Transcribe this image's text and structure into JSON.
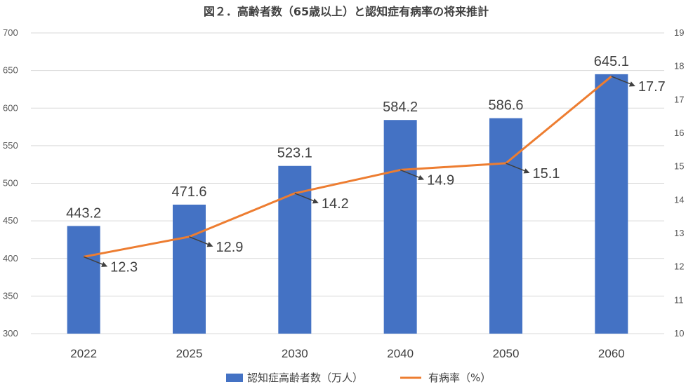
{
  "chart_data": {
    "type": "bar",
    "title": "図２．高齢者数（65歳以上）と認知症有病率の将来推計",
    "categories": [
      "2022",
      "2025",
      "2030",
      "2040",
      "2050",
      "2060"
    ],
    "series": [
      {
        "name": "認知症高齢者数（万人）",
        "type": "bar",
        "axis": "left",
        "values": [
          443.2,
          471.6,
          523.1,
          584.2,
          586.6,
          645.1
        ],
        "labels": [
          "443.2",
          "471.6",
          "523.1",
          "584.2",
          "586.6",
          "645.1"
        ],
        "color": "#4472C4"
      },
      {
        "name": "有病率（%）",
        "type": "line",
        "axis": "right",
        "values": [
          12.3,
          12.9,
          14.2,
          14.9,
          15.1,
          17.7
        ],
        "labels": [
          "12.3",
          "12.9",
          "14.2",
          "14.9",
          "15.1",
          "17.7"
        ],
        "color": "#ED7D31"
      }
    ],
    "y_left": {
      "min": 300,
      "max": 700,
      "step": 50
    },
    "y_right": {
      "min": 10,
      "max": 19,
      "step": 1
    },
    "legend_position": "bottom",
    "grid": true
  }
}
